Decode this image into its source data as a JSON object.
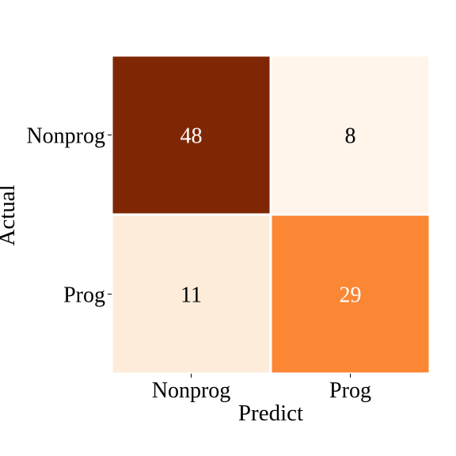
{
  "chart_data": {
    "type": "heatmap",
    "title": "",
    "xlabel": "Predict",
    "ylabel": "Actual",
    "x_categories": [
      "Nonprog",
      "Prog"
    ],
    "y_categories": [
      "Nonprog",
      "Prog"
    ],
    "values": [
      [
        48,
        8
      ],
      [
        11,
        29
      ]
    ],
    "colormap": "Oranges",
    "color_range": [
      8,
      48
    ],
    "colors": {
      "low": "#fff5eb",
      "mid": "#fd8d3c",
      "high": "#7f2704",
      "grid_line": "#ffffff",
      "text_dark": "#000000",
      "text_light": "#ffffff"
    },
    "colorbar": false
  }
}
